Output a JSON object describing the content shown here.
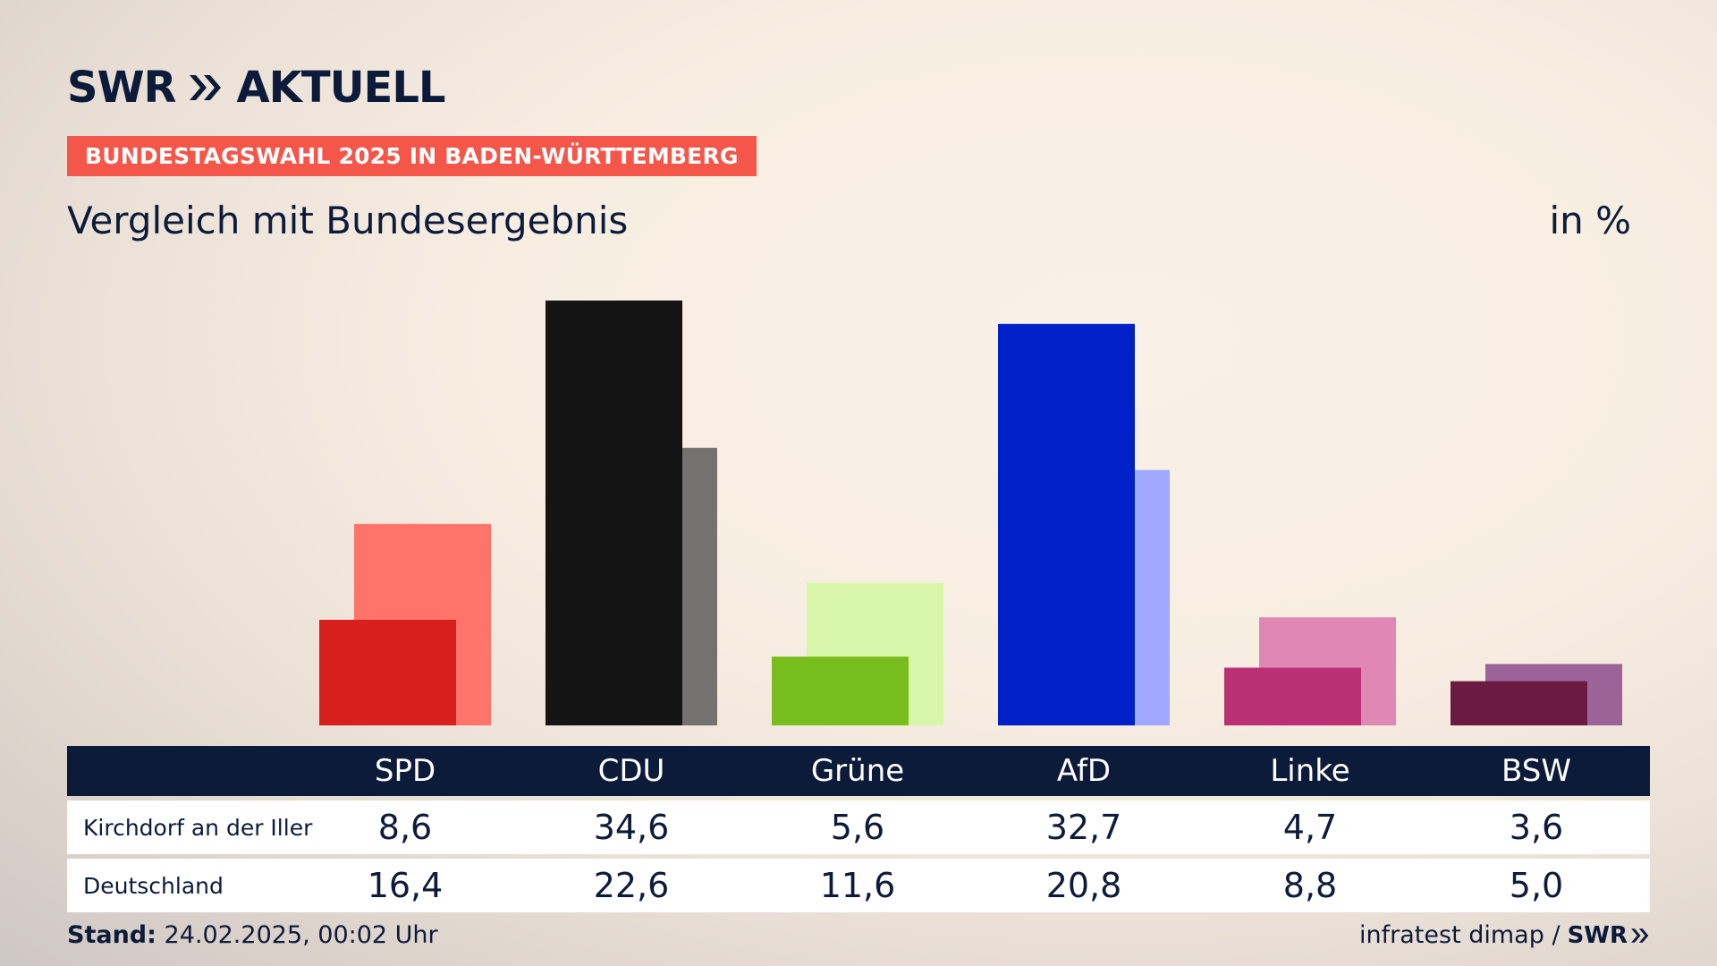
{
  "brand": {
    "logo_text": "AKTUELL",
    "logo_prefix": "SWR"
  },
  "banner": "BUNDESTAGSWAHL 2025 IN BADEN-WÜRTTEMBERG",
  "subtitle": "Vergleich mit Bundesergebnis",
  "unit": "in %",
  "chart_data": {
    "type": "bar",
    "categories": [
      "SPD",
      "CDU",
      "Grüne",
      "AfD",
      "Linke",
      "BSW"
    ],
    "series": [
      {
        "name": "Kirchdorf an der Iller",
        "values": [
          8.6,
          34.6,
          5.6,
          32.7,
          4.7,
          3.6
        ]
      },
      {
        "name": "Deutschland",
        "values": [
          16.4,
          22.6,
          11.6,
          20.8,
          8.8,
          5.0
        ]
      }
    ],
    "ylim": [
      0,
      34.6
    ],
    "colors": {
      "local": [
        "#d7201e",
        "#141414",
        "#78be1e",
        "#0020c8",
        "#bb3074",
        "#6b1a42"
      ],
      "national": [
        "#ff746a",
        "#747170",
        "#d8f6aa",
        "#a0a8ff",
        "#df88b6",
        "#9c6399"
      ]
    },
    "grid": false,
    "legend": "table-below"
  },
  "table": {
    "rows": [
      {
        "label": "Kirchdorf an der Iller",
        "values": [
          "8,6",
          "34,6",
          "5,6",
          "32,7",
          "4,7",
          "3,6"
        ]
      },
      {
        "label": "Deutschland",
        "values": [
          "16,4",
          "22,6",
          "11,6",
          "20,8",
          "8,8",
          "5,0"
        ]
      }
    ]
  },
  "footer": {
    "stand_label": "Stand:",
    "stand_value": "24.02.2025, 00:02 Uhr",
    "source": "infratest dimap /",
    "source_brand": "SWR"
  }
}
